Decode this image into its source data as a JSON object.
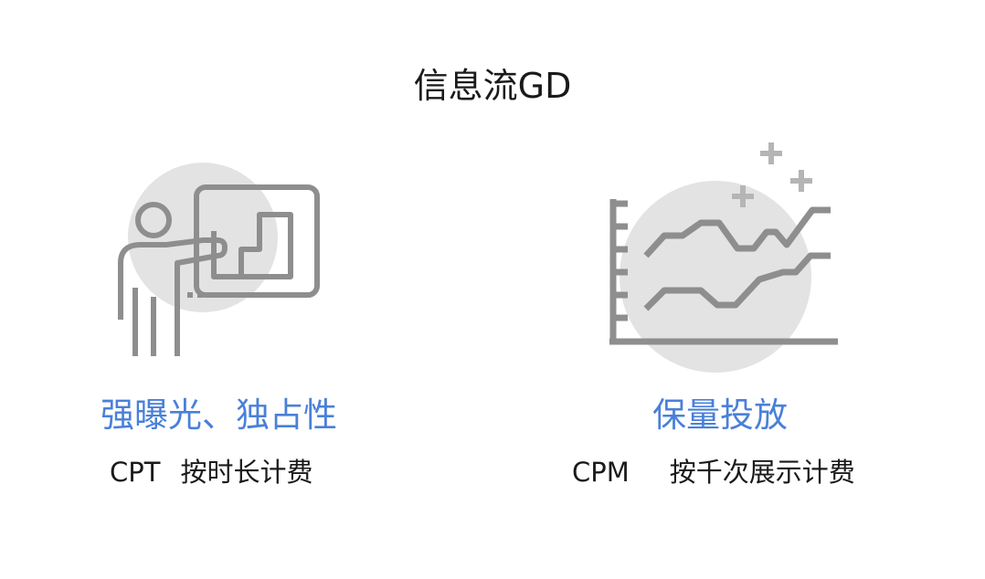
{
  "title": "信息流GD",
  "colors": {
    "accent": "#4a80d8",
    "icon_gray": "#8e8e8e",
    "circle_fill": "#e3e3e3",
    "sparkle": "#b5b5b5"
  },
  "left": {
    "icon": "presenter-chart-icon",
    "headline": "强曝光、独占性",
    "code": "CPT",
    "description": "按时长计费"
  },
  "right": {
    "icon": "growth-line-chart-icon",
    "headline": "保量投放",
    "code": "CPM",
    "description": "按千次展示计费"
  }
}
